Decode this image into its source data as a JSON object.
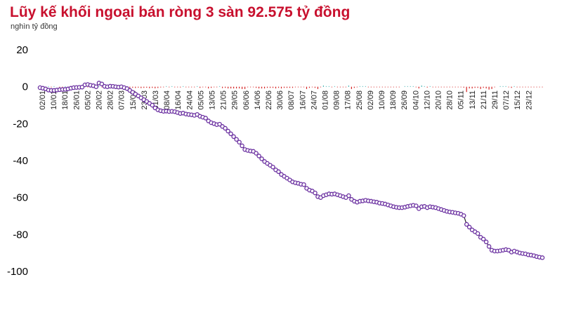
{
  "chart_data": {
    "type": "line",
    "title": "Lũy kế khối ngoại bán ròng 3 sàn 92.575 tỷ đồng",
    "unit_label": "nghìn tỷ đồng",
    "ylim": [
      -100,
      20
    ],
    "yticks": [
      20,
      0,
      -20,
      -40,
      -60,
      -80,
      -100
    ],
    "grid": false,
    "colors": {
      "title": "#c8102e",
      "line": "#6a2fa0",
      "marker_fill": "#ffffff",
      "daily_sell": "#d42020",
      "daily_buy": "#2aa7a7"
    },
    "x_tick_labels": [
      "02/01",
      "10/01",
      "18/01",
      "26/01",
      "05/02",
      "20/02",
      "28/02",
      "07/03",
      "15/03",
      "23/03",
      "31/03",
      "08/04",
      "16/04",
      "24/04",
      "05/05",
      "13/05",
      "21/05",
      "29/05",
      "06/06",
      "14/06",
      "22/06",
      "30/06",
      "08/07",
      "16/07",
      "24/07",
      "01/08",
      "09/08",
      "17/08",
      "25/08",
      "02/09",
      "10/09",
      "18/09",
      "26/09",
      "04/10",
      "12/10",
      "20/10",
      "28/10",
      "05/11",
      "13/11",
      "21/11",
      "29/11",
      "07/12",
      "15/12",
      "23/12"
    ],
    "series": [
      {
        "values": [
          -0.5,
          -0.8,
          -1.2,
          -1.8,
          -2.0,
          -2.0,
          -1.8,
          -1.6,
          -1.5,
          -1.4,
          -1.2,
          -0.8,
          -0.5,
          -0.4,
          -0.3,
          -0.2,
          1.0,
          1.2,
          0.8,
          0.5,
          0.0,
          2.0,
          1.5,
          0.2,
          0.0,
          0.3,
          0.2,
          0.0,
          -0.2,
          0.0,
          -0.5,
          -1.0,
          -2.0,
          -3.0,
          -4.0,
          -5.0,
          -6.0,
          -7.0,
          -8.0,
          -9.0,
          -10.0,
          -11.5,
          -12.5,
          -13.0,
          -13.3,
          -13.2,
          -13.4,
          -13.3,
          -13.5,
          -14.0,
          -14.5,
          -14.3,
          -14.8,
          -15.0,
          -15.2,
          -15.5,
          -15.0,
          -16.0,
          -16.5,
          -17.0,
          -18.5,
          -19.5,
          -20.0,
          -20.5,
          -20.3,
          -21.5,
          -22.5,
          -24.0,
          -25.5,
          -27.0,
          -28.5,
          -30.0,
          -32.0,
          -34.0,
          -34.5,
          -34.8,
          -35.0,
          -36.0,
          -37.5,
          -39.0,
          -40.5,
          -41.5,
          -42.5,
          -43.5,
          -45.0,
          -46.0,
          -47.5,
          -48.5,
          -49.5,
          -50.5,
          -51.5,
          -52.0,
          -52.3,
          -52.8,
          -53.0,
          -55.0,
          -56.0,
          -56.5,
          -57.5,
          -59.5,
          -60.0,
          -59.0,
          -58.5,
          -58.0,
          -58.2,
          -58.0,
          -58.5,
          -59.0,
          -59.5,
          -60.0,
          -59.0,
          -61.0,
          -62.0,
          -62.5,
          -62.0,
          -61.8,
          -61.5,
          -61.8,
          -62.0,
          -62.3,
          -62.5,
          -63.0,
          -63.2,
          -63.5,
          -64.0,
          -64.5,
          -65.0,
          -65.3,
          -65.5,
          -65.5,
          -65.2,
          -64.8,
          -64.5,
          -64.2,
          -64.5,
          -66.0,
          -65.0,
          -64.8,
          -65.5,
          -65.0,
          -65.2,
          -65.5,
          -66.0,
          -66.5,
          -67.0,
          -67.5,
          -67.8,
          -68.0,
          -68.3,
          -68.5,
          -69.0,
          -69.8,
          -74.5,
          -76.0,
          -77.5,
          -78.5,
          -79.5,
          -81.5,
          -82.5,
          -84.0,
          -86.5,
          -88.5,
          -89.0,
          -89.0,
          -88.8,
          -88.5,
          -88.2,
          -88.5,
          -89.5,
          -89.0,
          -89.5,
          -90.0,
          -90.3,
          -90.5,
          -91.0,
          -91.2,
          -91.5,
          -92.0,
          -92.3,
          -92.575
        ]
      }
    ],
    "daily_flows": [
      0,
      0,
      -0.05,
      0.1,
      -0.1,
      0.05,
      0,
      -0.2,
      -0.1,
      0.05,
      -0.3,
      -0.1,
      0,
      0.1,
      -0.2,
      -0.4,
      0.2,
      -0.1,
      0,
      -0.1,
      -0.3,
      0.4,
      -0.2,
      -0.5,
      -0.1,
      0,
      -0.3,
      -0.2,
      -0.4,
      0.1,
      -0.5,
      -0.6,
      -1.0,
      -0.9,
      -1.1,
      -0.8,
      -1.2,
      -1.0,
      -0.9,
      -1.3,
      -1.0,
      -1.4,
      -1.1,
      -0.6,
      -0.4,
      0.2,
      -0.3,
      0.1,
      -0.4,
      -0.5,
      -0.6,
      0.3,
      -0.5,
      -0.3,
      -0.4,
      -0.4,
      0.5,
      -1.0,
      -0.5,
      -0.5,
      -1.5,
      -1.0,
      -0.5,
      -0.5,
      0.2,
      -1.2,
      -1.0,
      -1.5,
      -1.5,
      -1.5,
      -1.5,
      -1.5,
      -2.0,
      -2.0,
      -0.5,
      -0.3,
      -0.2,
      -1.0,
      -1.5,
      -1.5,
      -1.5,
      -1.0,
      -1.0,
      -1.0,
      -1.5,
      -1.0,
      -1.5,
      -1.0,
      -1.0,
      -1.0,
      -1.0,
      -0.5,
      -0.3,
      -0.5,
      -0.2,
      -2.0,
      -1.0,
      -0.5,
      -1.0,
      -2.0,
      -0.5,
      1.0,
      0.5,
      0.5,
      -0.2,
      0.2,
      -0.5,
      -0.5,
      -0.5,
      -0.5,
      1.0,
      -2.0,
      -1.0,
      -0.5,
      0.5,
      0.2,
      0.3,
      -0.3,
      -0.2,
      -0.3,
      -0.2,
      -0.5,
      -0.2,
      -0.3,
      -0.5,
      -0.5,
      -0.5,
      -0.3,
      -0.2,
      0,
      0.3,
      0.4,
      0.3,
      0.3,
      -0.3,
      -1.5,
      1.0,
      0.2,
      -0.7,
      0.5,
      -0.2,
      -0.3,
      -0.5,
      -0.5,
      -0.5,
      -0.5,
      -0.3,
      -0.2,
      -0.3,
      -0.2,
      -0.5,
      -0.8,
      -4.7,
      -1.5,
      -1.5,
      -1.0,
      -1.0,
      -2.0,
      -1.0,
      -1.5,
      -2.5,
      -2.0,
      -0.5,
      0,
      0.2,
      0.3,
      0.3,
      -0.3,
      -1.0,
      0.5,
      -0.5,
      -0.5,
      -0.3,
      -0.2,
      -0.5,
      -0.2,
      -0.3,
      -0.5,
      -0.3,
      -0.275
    ]
  }
}
